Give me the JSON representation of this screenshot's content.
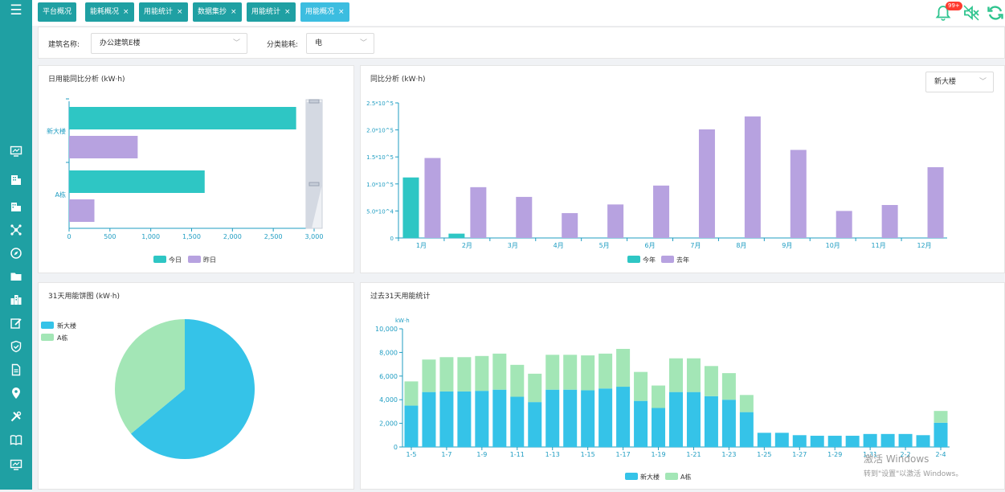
{
  "tabs": [
    {
      "label": "平台概况",
      "closable": false,
      "active": false
    },
    {
      "label": "能耗概况",
      "closable": true,
      "active": false
    },
    {
      "label": "用能统计",
      "closable": true,
      "active": false
    },
    {
      "label": "数据集抄",
      "closable": true,
      "active": false
    },
    {
      "label": "用能统计",
      "closable": true,
      "active": false
    },
    {
      "label": "用能概况",
      "closable": true,
      "active": true
    }
  ],
  "tab_close_glyph": "×",
  "top_icons": {
    "bell_badge": "99+"
  },
  "filters": {
    "building_label": "建筑名称:",
    "building_value": "办公建筑E楼",
    "category_label": "分类能耗:",
    "category_value": "电"
  },
  "panels": {
    "daily": {
      "title": "日用能同比分析 (kW·h)"
    },
    "yoy": {
      "title": "同比分析 (kW·h)",
      "select_value": "新大楼"
    },
    "pie": {
      "title": "31天用能饼图 (kW·h)"
    },
    "last31": {
      "title": "过去31天用能统计"
    }
  },
  "colors": {
    "teal": "#2ec6c4",
    "purple": "#b7a2e0",
    "blue": "#35c3e8",
    "green": "#a3e6b6",
    "sidebar": "#1fa0a3",
    "tab_active": "#3cbde0",
    "axis": "#1f9dc2"
  },
  "chart_data": [
    {
      "id": "daily",
      "type": "bar",
      "orientation": "horizontal",
      "categories": [
        "新大楼",
        "A栋"
      ],
      "series": [
        {
          "name": "今日",
          "values": [
            2780,
            1660
          ]
        },
        {
          "name": "昨日",
          "values": [
            840,
            310
          ]
        }
      ],
      "xlim": [
        0,
        3000
      ],
      "ticks": [
        "0",
        "500",
        "1,000",
        "1,500",
        "2,000",
        "2,500",
        "3,000"
      ],
      "legend": [
        "今日",
        "昨日"
      ]
    },
    {
      "id": "yoy",
      "type": "bar",
      "categories": [
        "1月",
        "2月",
        "3月",
        "4月",
        "5月",
        "6月",
        "7月",
        "8月",
        "9月",
        "10月",
        "11月",
        "12月"
      ],
      "series": [
        {
          "name": "今年",
          "values": [
            112000,
            8000,
            0,
            0,
            0,
            0,
            0,
            0,
            0,
            0,
            0,
            0
          ]
        },
        {
          "name": "去年",
          "values": [
            148000,
            94000,
            76000,
            46000,
            62000,
            97000,
            201000,
            225000,
            163000,
            50000,
            61000,
            131000
          ]
        }
      ],
      "ylim": [
        0,
        250000
      ],
      "yticks": [
        "0",
        "5.0*10^4",
        "1.0*10^5",
        "1.5*10^5",
        "2.0*10^5",
        "2.5*10^5"
      ],
      "legend": [
        "今年",
        "去年"
      ]
    },
    {
      "id": "pie",
      "type": "pie",
      "labels": [
        "新大楼",
        "A栋"
      ],
      "values": [
        64,
        36
      ],
      "legend": [
        "新大楼",
        "A栋"
      ]
    },
    {
      "id": "last31",
      "type": "bar",
      "stacked": true,
      "ylabel": "kW·h",
      "categories": [
        "1-5",
        "1-6",
        "1-7",
        "1-8",
        "1-9",
        "1-10",
        "1-11",
        "1-12",
        "1-13",
        "1-14",
        "1-15",
        "1-16",
        "1-17",
        "1-18",
        "1-19",
        "1-20",
        "1-21",
        "1-22",
        "1-23",
        "1-24",
        "1-25",
        "1-26",
        "1-27",
        "1-28",
        "1-29",
        "1-30",
        "1-31",
        "2-1",
        "2-2",
        "2-3",
        "2-4"
      ],
      "tick_labels": [
        "1-5",
        "1-7",
        "1-9",
        "1-11",
        "1-13",
        "1-15",
        "1-17",
        "1-19",
        "1-21",
        "1-23",
        "1-25",
        "1-27",
        "1-29",
        "1-31",
        "2-2",
        "2-4"
      ],
      "series": [
        {
          "name": "新大楼",
          "values": [
            3500,
            4650,
            4700,
            4700,
            4750,
            4850,
            4250,
            3800,
            4850,
            4850,
            4800,
            4950,
            5100,
            3900,
            3300,
            4650,
            4650,
            4300,
            4000,
            2950,
            1200,
            1200,
            1000,
            950,
            950,
            950,
            1100,
            1100,
            1100,
            1000,
            2050
          ]
        },
        {
          "name": "A栋",
          "values": [
            2050,
            2750,
            2900,
            2900,
            2950,
            3050,
            2700,
            2400,
            2950,
            2950,
            2950,
            2950,
            3200,
            2450,
            1900,
            2850,
            2850,
            2550,
            2250,
            1450,
            0,
            0,
            0,
            0,
            0,
            0,
            0,
            0,
            0,
            0,
            1000
          ]
        }
      ],
      "ylim": [
        0,
        10000
      ],
      "yticks": [
        "0",
        "2,000",
        "4,000",
        "6,000",
        "8,000",
        "10,000"
      ],
      "legend": [
        "新大楼",
        "A栋"
      ]
    }
  ],
  "watermark": {
    "line1": "激活 Windows",
    "line2": "转到\"设置\"以激活 Windows。"
  }
}
